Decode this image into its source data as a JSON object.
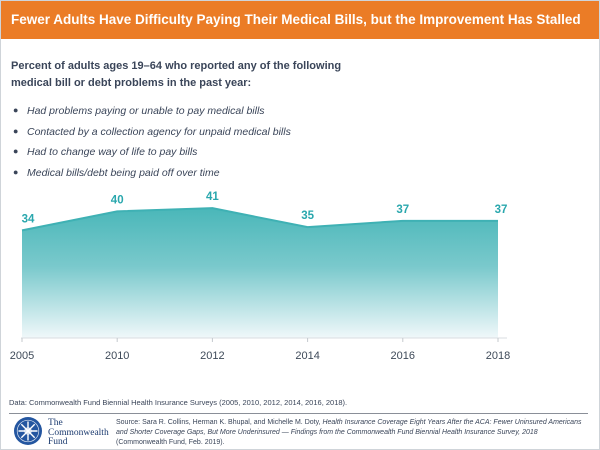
{
  "header": {
    "title": "Fewer Adults Have Difficulty Paying Their Medical Bills, but the Improvement Has Stalled"
  },
  "subtitle": {
    "line1": "Percent of adults ages 19–64 who reported any of the following",
    "line2": "medical bill or debt problems in the past year:"
  },
  "bullets": [
    "Had problems paying or unable to pay medical bills",
    "Contacted by a collection agency for unpaid medical bills",
    "Had to change way of life to pay bills",
    "Medical bills/debt being paid off over time"
  ],
  "chart_data": {
    "type": "area",
    "categories": [
      "2005",
      "2010",
      "2012",
      "2014",
      "2016",
      "2018"
    ],
    "values": [
      34,
      40,
      41,
      35,
      37,
      37
    ],
    "title": "",
    "xlabel": "",
    "ylabel": "",
    "ylim": [
      0,
      48
    ],
    "grid": false,
    "data_labels": true,
    "legend": "none"
  },
  "footnotes": {
    "data_note": "Data: Commonwealth Fund Biennial Health Insurance Surveys (2005, 2010, 2012, 2014, 2016, 2018).",
    "source_prefix": "Source: Sara R. Collins, Herman K. Bhupal, and Michelle M. Doty, ",
    "source_italic": "Health Insurance Coverage Eight Years After the ACA: Fewer Uninsured Americans and Shorter Coverage Gaps, But More Underinsured — Findings from the Commonwealth Fund Biennial Health Insurance Survey, 2018",
    "source_suffix": " (Commonwealth Fund, Feb. 2019)."
  },
  "logo": {
    "line1": "The",
    "line2": "Commonwealth",
    "line3": "Fund"
  },
  "colors": {
    "orange": "#eb7c26",
    "navy_text": "#3a4559",
    "axis_text": "#3e4a59",
    "teal_line": "#3fb1b4",
    "teal_label": "#29a7ad",
    "area_top": "#4ab7b9",
    "area_mid": "#7ac9cc",
    "area_bottom": "#f0f8fa",
    "logo_blue": "#2456a0",
    "logo_text_blue": "#1b3a6f",
    "divider_gray": "#8a8f98",
    "baseline_gray": "#d9dde0",
    "tick_gray": "#c4c9ce"
  }
}
